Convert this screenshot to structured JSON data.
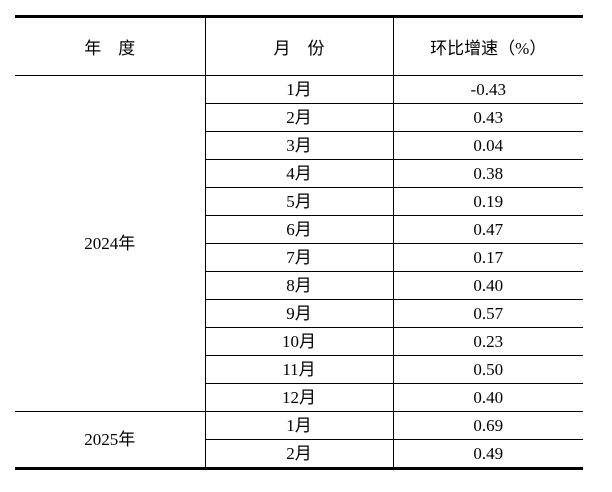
{
  "table": {
    "headers": [
      "年　度",
      "月　份",
      "环比增速（%）"
    ],
    "groups": [
      {
        "year": "2024年",
        "rows": [
          {
            "month": "1月",
            "value": "-0.43"
          },
          {
            "month": "2月",
            "value": "0.43"
          },
          {
            "month": "3月",
            "value": "0.04"
          },
          {
            "month": "4月",
            "value": "0.38"
          },
          {
            "month": "5月",
            "value": "0.19"
          },
          {
            "month": "6月",
            "value": "0.47"
          },
          {
            "month": "7月",
            "value": "0.17"
          },
          {
            "month": "8月",
            "value": "0.40"
          },
          {
            "month": "9月",
            "value": "0.57"
          },
          {
            "month": "10月",
            "value": "0.23"
          },
          {
            "month": "11月",
            "value": "0.50"
          },
          {
            "month": "12月",
            "value": "0.40"
          }
        ]
      },
      {
        "year": "2025年",
        "rows": [
          {
            "month": "1月",
            "value": "0.69"
          },
          {
            "month": "2月",
            "value": "0.49"
          }
        ]
      }
    ]
  },
  "colors": {
    "border": "#000000",
    "text": "#000000",
    "background": "#ffffff"
  }
}
